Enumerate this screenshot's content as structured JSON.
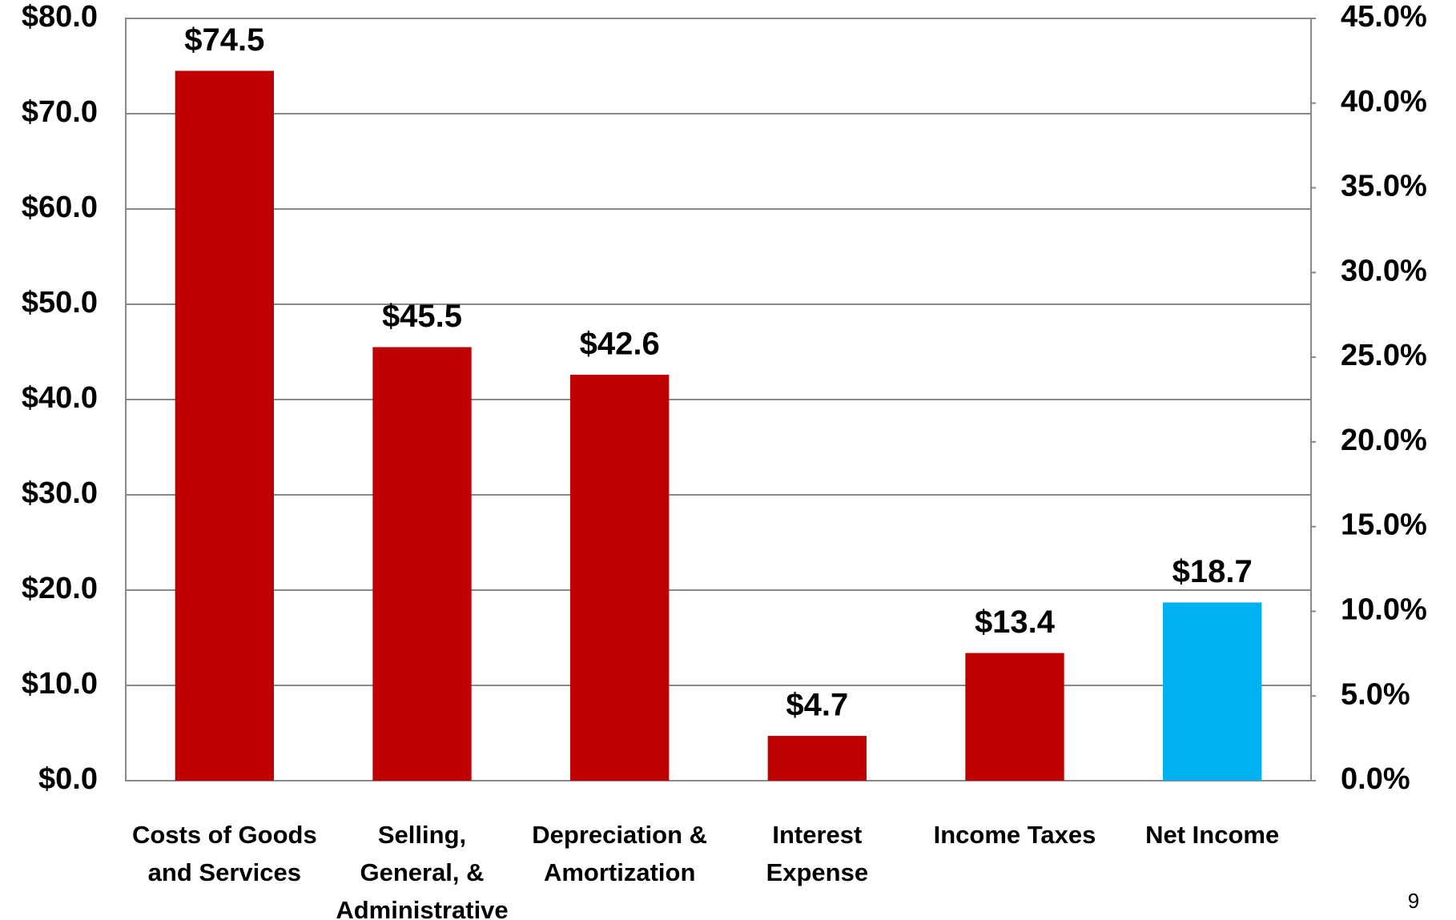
{
  "chart_data": {
    "type": "bar",
    "categories": [
      "Costs of Goods\nand Services",
      "Selling,\nGeneral, &\nAdministrative",
      "Depreciation &\nAmortization",
      "Interest\nExpense",
      "Income Taxes",
      "Net Income"
    ],
    "values": [
      74.5,
      45.5,
      42.6,
      4.7,
      13.4,
      18.7
    ],
    "value_labels": [
      "$74.5",
      "$45.5",
      "$42.6",
      "$4.7",
      "$13.4",
      "$18.7"
    ],
    "colors": [
      "#c00000",
      "#c00000",
      "#c00000",
      "#c00000",
      "#c00000",
      "#00b0f0"
    ],
    "ylim": [
      0,
      80
    ],
    "yticks": [
      {
        "value": 0,
        "label": "$0.0"
      },
      {
        "value": 10,
        "label": "$10.0"
      },
      {
        "value": 20,
        "label": "$20.0"
      },
      {
        "value": 30,
        "label": "$30.0"
      },
      {
        "value": 40,
        "label": "$40.0"
      },
      {
        "value": 50,
        "label": "$50.0"
      },
      {
        "value": 60,
        "label": "$60.0"
      },
      {
        "value": 70,
        "label": "$70.0"
      },
      {
        "value": 80,
        "label": "$80.0"
      }
    ],
    "y2lim": [
      0,
      45
    ],
    "y2ticks": [
      {
        "value": 0,
        "label": "0.0%"
      },
      {
        "value": 5,
        "label": "5.0%"
      },
      {
        "value": 10,
        "label": "10.0%"
      },
      {
        "value": 15,
        "label": "15.0%"
      },
      {
        "value": 20,
        "label": "20.0%"
      },
      {
        "value": 25,
        "label": "25.0%"
      },
      {
        "value": 30,
        "label": "30.0%"
      },
      {
        "value": 35,
        "label": "35.0%"
      },
      {
        "value": 40,
        "label": "40.0%"
      },
      {
        "value": 45,
        "label": "45.0%"
      }
    ],
    "grid": true
  },
  "page_number": "9"
}
